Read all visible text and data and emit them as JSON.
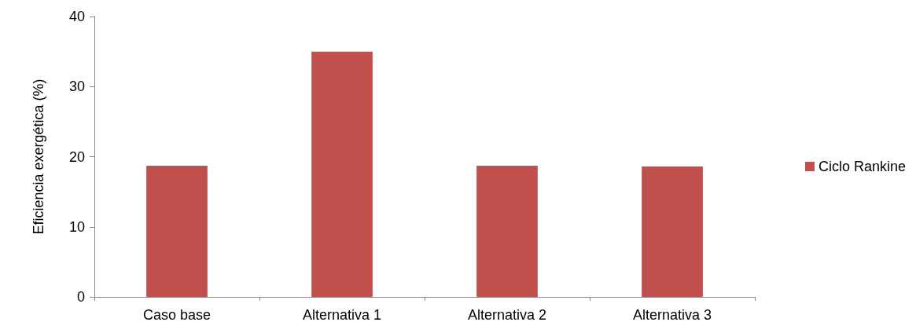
{
  "chart_data": {
    "type": "bar",
    "ylabel": "Eficiencia exergética (%)",
    "categories": [
      "Caso base",
      "Alternativa 1",
      "Alternativa 2",
      "Alternativa 3"
    ],
    "series": [
      {
        "name": "Ciclo Rankine",
        "color": "#c0504d",
        "values": [
          18.7,
          35.0,
          18.7,
          18.6
        ]
      }
    ],
    "ylim": [
      0,
      40
    ],
    "yticks": [
      0,
      10,
      20,
      30,
      40
    ],
    "grid": false,
    "legend": "right"
  }
}
